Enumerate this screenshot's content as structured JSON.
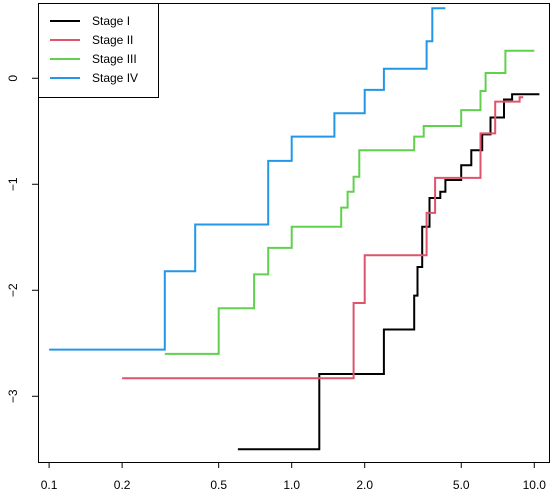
{
  "chart_data": {
    "type": "line",
    "step": true,
    "x_scale": "log",
    "xlim": [
      0.09,
      11.5
    ],
    "ylim": [
      -3.62,
      0.71
    ],
    "x_ticks": [
      0.1,
      0.2,
      0.5,
      1.0,
      2.0,
      5.0,
      10.0
    ],
    "x_tick_labels": [
      "0.1",
      "0.2",
      "0.5",
      "1.0",
      "2.0",
      "5.0",
      "10.0"
    ],
    "y_ticks": [
      0,
      -1,
      -2,
      -3
    ],
    "y_tick_labels": [
      "0",
      "−1",
      "−2",
      "−3"
    ],
    "grid": false,
    "legend_position": "top-left",
    "title": "",
    "xlabel": "",
    "ylabel": "",
    "series": [
      {
        "name": "Stage I",
        "color": "#000000",
        "points": [
          [
            0.6,
            -3.5
          ],
          [
            1.3,
            -3.5
          ],
          [
            1.3,
            -2.79
          ],
          [
            2.4,
            -2.79
          ],
          [
            2.4,
            -2.37
          ],
          [
            3.2,
            -2.37
          ],
          [
            3.2,
            -2.05
          ],
          [
            3.3,
            -2.05
          ],
          [
            3.3,
            -1.78
          ],
          [
            3.45,
            -1.78
          ],
          [
            3.45,
            -1.4
          ],
          [
            3.7,
            -1.4
          ],
          [
            3.7,
            -1.13
          ],
          [
            4.1,
            -1.13
          ],
          [
            4.1,
            -1.07
          ],
          [
            4.3,
            -1.07
          ],
          [
            4.3,
            -0.96
          ],
          [
            5.0,
            -0.96
          ],
          [
            5.0,
            -0.82
          ],
          [
            5.5,
            -0.82
          ],
          [
            5.5,
            -0.68
          ],
          [
            6.1,
            -0.68
          ],
          [
            6.1,
            -0.53
          ],
          [
            6.6,
            -0.53
          ],
          [
            6.6,
            -0.37
          ],
          [
            7.5,
            -0.37
          ],
          [
            7.5,
            -0.2
          ],
          [
            8.1,
            -0.2
          ],
          [
            8.1,
            -0.15
          ],
          [
            10.5,
            -0.15
          ]
        ]
      },
      {
        "name": "Stage II",
        "color": "#DF536B",
        "points": [
          [
            0.2,
            -2.83
          ],
          [
            1.8,
            -2.83
          ],
          [
            1.8,
            -2.12
          ],
          [
            2.0,
            -2.12
          ],
          [
            2.0,
            -1.67
          ],
          [
            3.6,
            -1.67
          ],
          [
            3.6,
            -1.27
          ],
          [
            3.9,
            -1.27
          ],
          [
            3.9,
            -0.94
          ],
          [
            6.0,
            -0.94
          ],
          [
            6.0,
            -0.52
          ],
          [
            6.9,
            -0.52
          ],
          [
            6.9,
            -0.22
          ],
          [
            8.7,
            -0.22
          ],
          [
            8.7,
            -0.18
          ],
          [
            9.0,
            -0.18
          ]
        ]
      },
      {
        "name": "Stage III",
        "color": "#61D04F",
        "points": [
          [
            0.3,
            -2.6
          ],
          [
            0.5,
            -2.6
          ],
          [
            0.5,
            -2.17
          ],
          [
            0.7,
            -2.17
          ],
          [
            0.7,
            -1.85
          ],
          [
            0.8,
            -1.85
          ],
          [
            0.8,
            -1.6
          ],
          [
            1.0,
            -1.6
          ],
          [
            1.0,
            -1.4
          ],
          [
            1.6,
            -1.4
          ],
          [
            1.6,
            -1.22
          ],
          [
            1.7,
            -1.22
          ],
          [
            1.7,
            -1.07
          ],
          [
            1.8,
            -1.07
          ],
          [
            1.8,
            -0.93
          ],
          [
            1.9,
            -0.93
          ],
          [
            1.9,
            -0.68
          ],
          [
            3.2,
            -0.68
          ],
          [
            3.2,
            -0.55
          ],
          [
            3.5,
            -0.55
          ],
          [
            3.5,
            -0.45
          ],
          [
            5.0,
            -0.45
          ],
          [
            5.0,
            -0.3
          ],
          [
            6.0,
            -0.3
          ],
          [
            6.0,
            -0.12
          ],
          [
            6.3,
            -0.12
          ],
          [
            6.3,
            0.05
          ],
          [
            7.6,
            0.05
          ],
          [
            7.6,
            0.26
          ],
          [
            10.0,
            0.26
          ]
        ]
      },
      {
        "name": "Stage IV",
        "color": "#2297E6",
        "points": [
          [
            0.1,
            -2.56
          ],
          [
            0.3,
            -2.56
          ],
          [
            0.3,
            -1.82
          ],
          [
            0.4,
            -1.82
          ],
          [
            0.4,
            -1.38
          ],
          [
            0.8,
            -1.38
          ],
          [
            0.8,
            -0.78
          ],
          [
            1.0,
            -0.78
          ],
          [
            1.0,
            -0.55
          ],
          [
            1.5,
            -0.55
          ],
          [
            1.5,
            -0.33
          ],
          [
            2.0,
            -0.33
          ],
          [
            2.0,
            -0.11
          ],
          [
            2.4,
            -0.11
          ],
          [
            2.4,
            0.09
          ],
          [
            3.6,
            0.09
          ],
          [
            3.6,
            0.35
          ],
          [
            3.8,
            0.35
          ],
          [
            3.8,
            0.66
          ],
          [
            4.3,
            0.66
          ]
        ]
      }
    ]
  }
}
